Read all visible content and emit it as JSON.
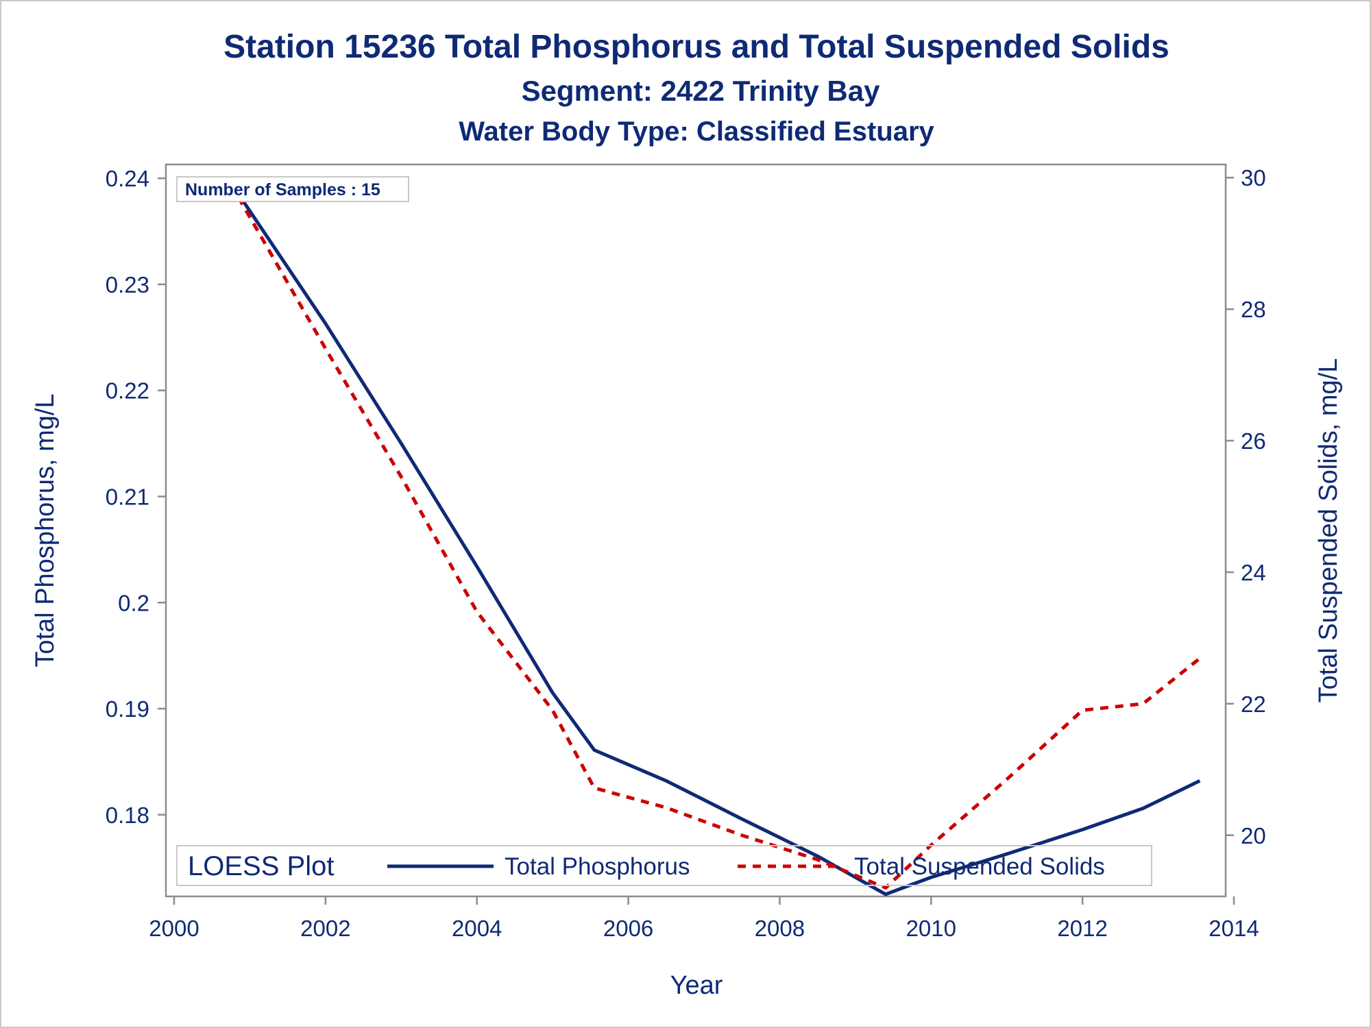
{
  "chart_data": {
    "type": "line",
    "title": "Station 15236  Total Phosphorus and Total Suspended Solids",
    "subtitle": "Segment: 2422  Trinity Bay",
    "subtitle2": "Water Body Type: Classified Estuary",
    "xlabel": "Year",
    "ylabel": "Total Phosphorus, mg/L",
    "y2label": "Total Suspended Solids, mg/L",
    "xlim": [
      2000,
      2014
    ],
    "ylim": [
      0.1723,
      0.2413
    ],
    "y2lim": [
      19.07,
      30.2
    ],
    "x_ticks": [
      "2000",
      "2002",
      "2004",
      "2006",
      "2008",
      "2010",
      "2012",
      "2014"
    ],
    "y_ticks": [
      "0.18",
      "0.19",
      "0.2",
      "0.21",
      "0.22",
      "0.23",
      "0.24"
    ],
    "y2_ticks": [
      "20",
      "22",
      "24",
      "26",
      "28",
      "30"
    ],
    "grid": false,
    "annotation": "Number of Samples : 15",
    "legend": {
      "title": "LOESS Plot",
      "position": "bottom-inside",
      "entries": [
        "Total Phosphorus",
        "Total Suspended Solids"
      ]
    },
    "series": [
      {
        "name": "Total Phosphorus",
        "axis": "left",
        "color": "#0f2a75",
        "style": "solid",
        "x": [
          2000.85,
          2002.0,
          2003.0,
          2004.0,
          2005.0,
          2005.55,
          2006.5,
          2007.5,
          2008.5,
          2009.4,
          2010.0,
          2011.0,
          2012.0,
          2012.8,
          2013.55
        ],
        "y": [
          0.2385,
          0.2263,
          0.215,
          0.2034,
          0.1915,
          0.1861,
          0.1832,
          0.1796,
          0.1761,
          0.1725,
          0.1741,
          0.1763,
          0.1786,
          0.1806,
          0.1832
        ]
      },
      {
        "name": "Total Suspended Solids",
        "axis": "right",
        "color": "#cc0000",
        "style": "dashed",
        "x": [
          2000.85,
          2002.0,
          2003.0,
          2004.0,
          2005.0,
          2005.55,
          2006.5,
          2007.5,
          2008.5,
          2009.4,
          2010.0,
          2011.0,
          2012.0,
          2012.8,
          2013.55
        ],
        "y": [
          29.7,
          27.4,
          25.45,
          23.4,
          21.9,
          20.72,
          20.42,
          20.0,
          19.63,
          19.2,
          19.85,
          20.85,
          21.9,
          22.0,
          22.69
        ]
      }
    ]
  }
}
